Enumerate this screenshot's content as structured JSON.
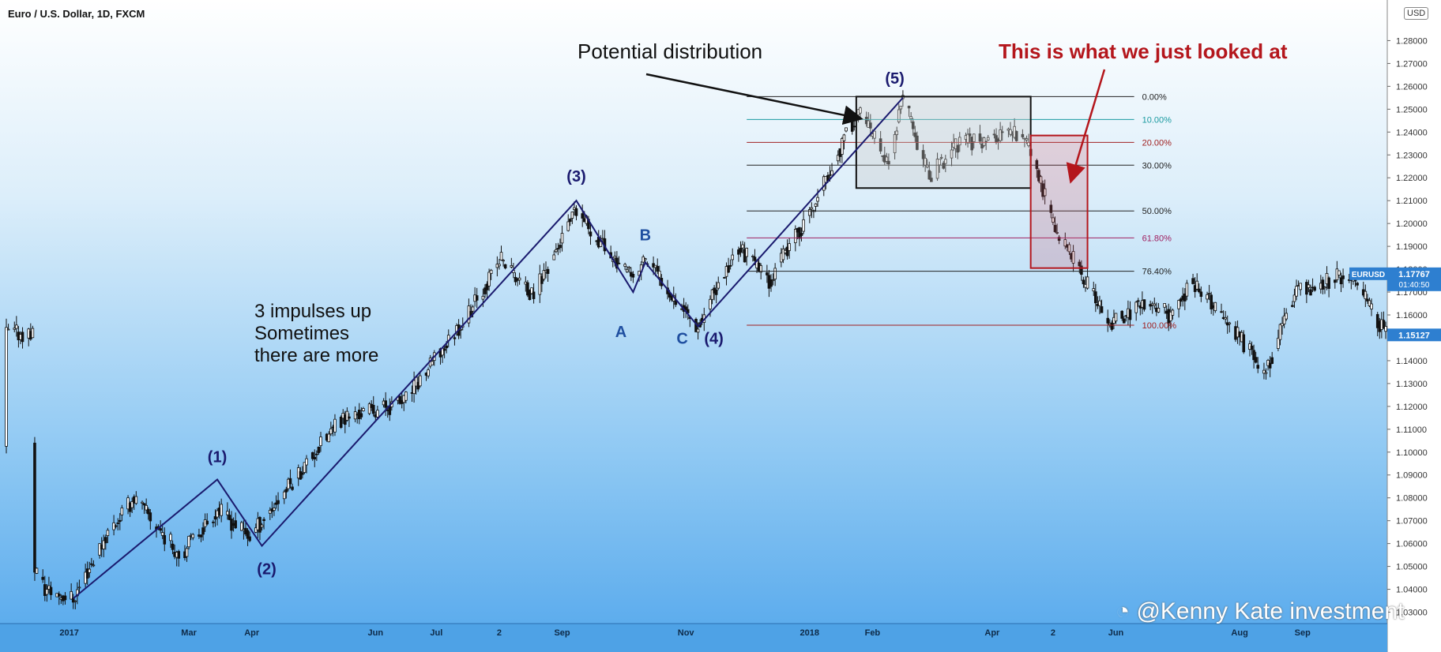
{
  "header": {
    "title": "Euro / U.S. Dollar, 1D, FXCM",
    "currency_badge": "USD"
  },
  "watermark": "@Kenny Kate investment",
  "annotations": {
    "potential_distribution": "Potential distribution",
    "looked_at": "This is what we just looked at",
    "impulses_line1": "3 impulses up",
    "impulses_line2": "Sometimes",
    "impulses_line3": "there are more",
    "wave_1": "(1)",
    "wave_2": "(2)",
    "wave_3": "(3)",
    "wave_4": "(4)",
    "wave_5": "(5)",
    "wave_a": "A",
    "wave_b": "B",
    "wave_c": "C"
  },
  "colors": {
    "accent_red": "#b4161c",
    "wave_line": "#1a1a6e",
    "price_tag": "#2e7fd0"
  },
  "chart_data": {
    "type": "candlestick",
    "symbol": "EURUSD",
    "timeframe": "1D",
    "ylim": [
      1.025,
      1.295
    ],
    "y_ticks": [
      "1.28000",
      "1.27000",
      "1.26000",
      "1.25000",
      "1.24000",
      "1.23000",
      "1.22000",
      "1.21000",
      "1.20000",
      "1.19000",
      "1.18000",
      "1.17000",
      "1.16000",
      "1.15000",
      "1.14000",
      "1.13000",
      "1.12000",
      "1.11000",
      "1.10000",
      "1.09000",
      "1.08000",
      "1.07000",
      "1.06000",
      "1.05000",
      "1.04000",
      "1.03000"
    ],
    "x_ticks": [
      "2017",
      "Mar",
      "Apr",
      "Jun",
      "Jul",
      "2",
      "Sep",
      "Nov",
      "2018",
      "Feb",
      "Apr",
      "2",
      "Jun",
      "Aug",
      "Sep"
    ],
    "last_price": {
      "symbol": "EURUSD",
      "value": "1.17767",
      "countdown": "01:40:50"
    },
    "current_price": "1.15127",
    "approx_path": [
      [
        "2016-12-15",
        1.05
      ],
      [
        "2016-12-20",
        1.04
      ],
      [
        "2017-01-03",
        1.036
      ],
      [
        "2017-01-20",
        1.065
      ],
      [
        "2017-02-02",
        1.08
      ],
      [
        "2017-02-25",
        1.055
      ],
      [
        "2017-03-15",
        1.075
      ],
      [
        "2017-03-31",
        1.063
      ],
      [
        "2017-04-25",
        1.092
      ],
      [
        "2017-05-16",
        1.115
      ],
      [
        "2017-06-15",
        1.122
      ],
      [
        "2017-06-30",
        1.14
      ],
      [
        "2017-07-20",
        1.165
      ],
      [
        "2017-08-02",
        1.185
      ],
      [
        "2017-08-17",
        1.168
      ],
      [
        "2017-09-08",
        1.205
      ],
      [
        "2017-10-06",
        1.175
      ],
      [
        "2017-10-12",
        1.185
      ],
      [
        "2017-11-07",
        1.155
      ],
      [
        "2017-11-27",
        1.19
      ],
      [
        "2017-12-12",
        1.175
      ],
      [
        "2018-01-02",
        1.205
      ],
      [
        "2018-01-25",
        1.25
      ],
      [
        "2018-02-09",
        1.225
      ],
      [
        "2018-02-16",
        1.255
      ],
      [
        "2018-03-01",
        1.22
      ],
      [
        "2018-03-15",
        1.235
      ],
      [
        "2018-04-17",
        1.24
      ],
      [
        "2018-05-01",
        1.2
      ],
      [
        "2018-05-29",
        1.155
      ],
      [
        "2018-06-14",
        1.165
      ],
      [
        "2018-06-28",
        1.16
      ],
      [
        "2018-07-09",
        1.175
      ],
      [
        "2018-08-14",
        1.135
      ],
      [
        "2018-08-28",
        1.17
      ],
      [
        "2018-09-24",
        1.178
      ],
      [
        "2018-10-12",
        1.152
      ]
    ],
    "elliott_waves": [
      {
        "label": "(1)",
        "date": "2017-03-15",
        "price": 1.088
      },
      {
        "label": "(2)",
        "date": "2017-04-06",
        "price": 1.059
      },
      {
        "label": "(3)",
        "date": "2017-09-08",
        "price": 1.21
      },
      {
        "label": "A",
        "date": "2017-10-06",
        "price": 1.17
      },
      {
        "label": "B",
        "date": "2017-10-12",
        "price": 1.183
      },
      {
        "label": "C",
        "date": "2017-11-07",
        "price": 1.155
      },
      {
        "label": "(4)",
        "date": "2017-11-07",
        "price": 1.155
      },
      {
        "label": "(5)",
        "date": "2018-02-16",
        "price": 1.255
      }
    ],
    "fibonacci": {
      "high": 1.2555,
      "low": 1.1555,
      "levels": [
        {
          "label": "0.00%",
          "price": 1.2555,
          "color": "#222222"
        },
        {
          "label": "10.00%",
          "price": 1.2455,
          "color": "#1a9aa0"
        },
        {
          "label": "20.00%",
          "price": 1.2355,
          "color": "#a02020"
        },
        {
          "label": "30.00%",
          "price": 1.2255,
          "color": "#222222"
        },
        {
          "label": "50.00%",
          "price": 1.2055,
          "color": "#222222"
        },
        {
          "label": "61.80%",
          "price": 1.1937,
          "color": "#a02060"
        },
        {
          "label": "76.40%",
          "price": 1.1791,
          "color": "#222222"
        },
        {
          "label": "100.00%",
          "price": 1.1555,
          "color": "#a02020"
        }
      ]
    },
    "distribution_box": {
      "start": "2018-01-24",
      "end": "2018-04-20",
      "high": 1.2555,
      "low": 1.2155
    },
    "decline_box": {
      "start": "2018-04-20",
      "end": "2018-05-18",
      "high": 1.2385,
      "low": 1.1805
    }
  }
}
